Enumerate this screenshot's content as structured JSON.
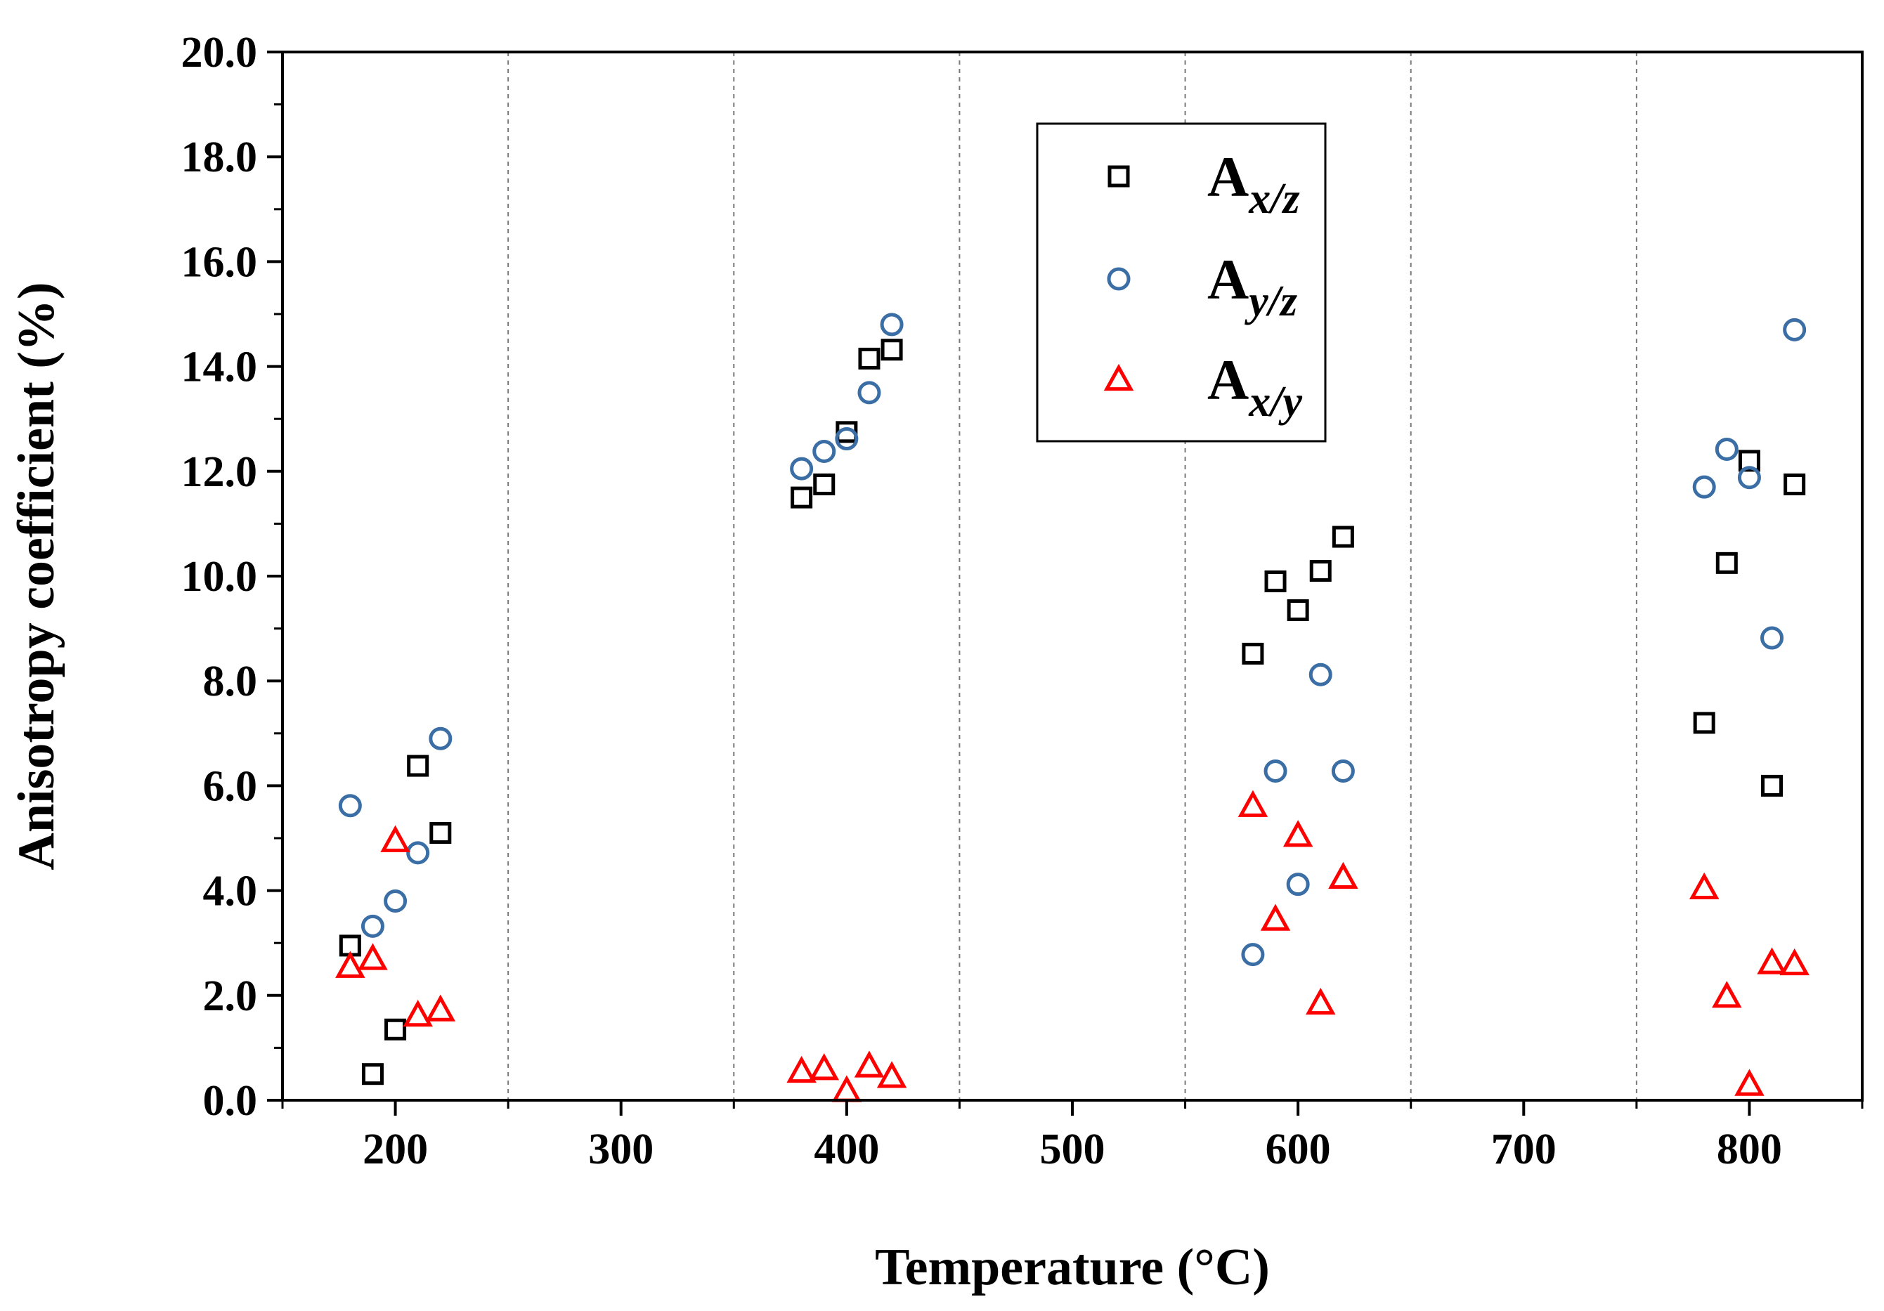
{
  "chart_data": {
    "type": "scatter",
    "title": "",
    "xlabel": "Temperature (°C)",
    "ylabel": "Anisotropy coefficient (%)",
    "xlim": [
      150,
      850
    ],
    "ylim": [
      0,
      20
    ],
    "xticks": [
      200,
      300,
      400,
      500,
      600,
      700,
      800
    ],
    "xtick_labels": [
      "200",
      "300",
      "400",
      "500",
      "600",
      "700",
      "800"
    ],
    "yticks": [
      0,
      2,
      4,
      6,
      8,
      10,
      12,
      14,
      16,
      18,
      20
    ],
    "ytick_labels": [
      "0.0",
      "2.0",
      "4.0",
      "6.0",
      "8.0",
      "10.0",
      "12.0",
      "14.0",
      "16.0",
      "18.0",
      "20.0"
    ],
    "grid": "vertical dashed at 250, 350, 450, 550, 650, 750",
    "grid_x": [
      250,
      350,
      450,
      550,
      650,
      750
    ],
    "legend_position": "top-center",
    "series": [
      {
        "name": "A_x/z",
        "label_main": "A",
        "label_sub": "x/z",
        "marker": "square",
        "color": "#000000",
        "points": [
          [
            180,
            2.95
          ],
          [
            190,
            0.5
          ],
          [
            200,
            1.35
          ],
          [
            210,
            6.38
          ],
          [
            220,
            5.1
          ],
          [
            380,
            11.5
          ],
          [
            390,
            11.75
          ],
          [
            400,
            12.75
          ],
          [
            410,
            14.15
          ],
          [
            420,
            14.32
          ],
          [
            580,
            8.52
          ],
          [
            590,
            9.9
          ],
          [
            600,
            9.35
          ],
          [
            610,
            10.1
          ],
          [
            620,
            10.75
          ],
          [
            780,
            7.2
          ],
          [
            790,
            10.25
          ],
          [
            800,
            12.2
          ],
          [
            810,
            6.0
          ],
          [
            820,
            11.75
          ]
        ]
      },
      {
        "name": "A_y/z",
        "label_main": "A",
        "label_sub": "y/z",
        "marker": "circle",
        "color": "#3a6ea5",
        "points": [
          [
            180,
            5.62
          ],
          [
            190,
            3.32
          ],
          [
            200,
            3.8
          ],
          [
            210,
            4.72
          ],
          [
            220,
            6.9
          ],
          [
            380,
            12.05
          ],
          [
            390,
            12.38
          ],
          [
            400,
            12.62
          ],
          [
            410,
            13.5
          ],
          [
            420,
            14.8
          ],
          [
            580,
            2.78
          ],
          [
            590,
            6.28
          ],
          [
            600,
            4.12
          ],
          [
            610,
            8.12
          ],
          [
            620,
            6.28
          ],
          [
            780,
            11.7
          ],
          [
            790,
            12.42
          ],
          [
            800,
            11.88
          ],
          [
            810,
            8.82
          ],
          [
            820,
            14.7
          ]
        ]
      },
      {
        "name": "A_x/y",
        "label_main": "A",
        "label_sub": "x/y",
        "marker": "triangle",
        "color": "#ff0000",
        "points": [
          [
            180,
            2.55
          ],
          [
            190,
            2.7
          ],
          [
            200,
            4.95
          ],
          [
            210,
            1.62
          ],
          [
            220,
            1.72
          ],
          [
            380,
            0.55
          ],
          [
            390,
            0.6
          ],
          [
            400,
            0.18
          ],
          [
            410,
            0.65
          ],
          [
            420,
            0.45
          ],
          [
            580,
            5.62
          ],
          [
            590,
            3.45
          ],
          [
            600,
            5.05
          ],
          [
            610,
            1.85
          ],
          [
            620,
            4.25
          ],
          [
            780,
            4.05
          ],
          [
            790,
            1.98
          ],
          [
            800,
            0.3
          ],
          [
            810,
            2.62
          ],
          [
            820,
            2.6
          ]
        ]
      }
    ]
  }
}
